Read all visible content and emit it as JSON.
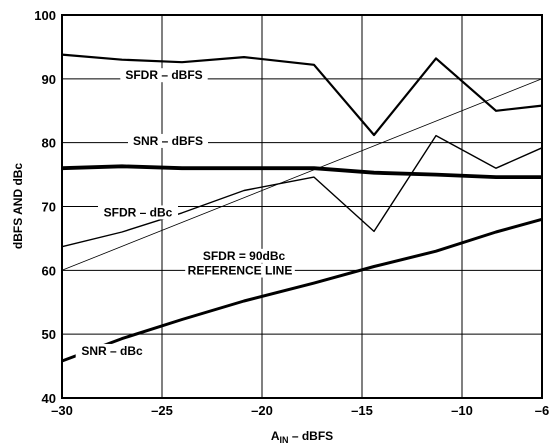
{
  "chart_data": {
    "type": "line",
    "title": "",
    "xlabel_main": "A",
    "xlabel_sub": "IN",
    "xlabel_rest": " – dBFS",
    "ylabel": "dBFS AND dBc",
    "xlim": [
      -30,
      -6
    ],
    "ylim": [
      40,
      100
    ],
    "xticks": [
      -30,
      -25,
      -20,
      -15,
      -10,
      -6
    ],
    "yticks": [
      40,
      50,
      60,
      70,
      80,
      90,
      100
    ],
    "xtick_labels": [
      "–30",
      "–25",
      "–20",
      "–15",
      "–10",
      "–6"
    ],
    "ytick_labels": [
      "40",
      "50",
      "60",
      "70",
      "80",
      "90",
      "100"
    ],
    "grid": true,
    "series": [
      {
        "name": "SFDR – dBFS",
        "x": [
          -30,
          -27,
          -24,
          -20.9,
          -17.4,
          -14.4,
          -11.3,
          -8.3,
          -6
        ],
        "y": [
          93.8,
          93.0,
          92.6,
          93.4,
          92.2,
          81.2,
          93.2,
          85.0,
          85.8
        ],
        "width": 2.2
      },
      {
        "name": "SNR – dBFS",
        "x": [
          -30,
          -27,
          -24,
          -20.9,
          -17.4,
          -14.4,
          -11.3,
          -8.3,
          -6
        ],
        "y": [
          76.0,
          76.3,
          76.0,
          76.0,
          76.0,
          75.3,
          75.0,
          74.6,
          74.6
        ],
        "width": 3.8
      },
      {
        "name": "SFDR – dBc",
        "x": [
          -30,
          -27,
          -24,
          -20.9,
          -17.4,
          -14.4,
          -11.3,
          -8.3,
          -6
        ],
        "y": [
          63.7,
          66.0,
          69.0,
          72.5,
          74.6,
          66.1,
          81.1,
          76.0,
          79.2
        ],
        "width": 1.4
      },
      {
        "name": "SNR – dBc",
        "x": [
          -30,
          -27,
          -24,
          -20.9,
          -17.4,
          -14.4,
          -11.3,
          -8.3,
          -6
        ],
        "y": [
          45.8,
          49.3,
          52.3,
          55.2,
          58.0,
          60.6,
          63.0,
          66.0,
          68.0
        ],
        "width": 3.0
      },
      {
        "name": "SFDR = 90dBc REFERENCE LINE",
        "x": [
          -30,
          -6
        ],
        "y": [
          60,
          90
        ],
        "width": 0.8
      }
    ],
    "annotations": [
      {
        "text": "SFDR – dBFS",
        "x": -24.9,
        "y": 90.1
      },
      {
        "text": "SNR – dBFS",
        "x": -24.7,
        "y": 79.8
      },
      {
        "text": "SFDR – dBc",
        "x": -26.2,
        "y": 68.6
      },
      {
        "text": "SFDR = 90dBc",
        "x": -20.9,
        "y": 61.8
      },
      {
        "text": "REFERENCE LINE",
        "x": -21.1,
        "y": 59.5
      },
      {
        "text": "SNR – dBc",
        "x": -27.5,
        "y": 46.9
      }
    ]
  }
}
